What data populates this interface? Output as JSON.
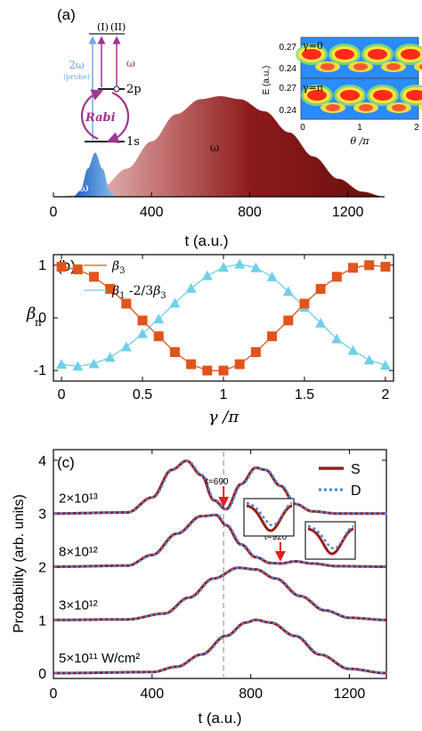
{
  "panel_a": {
    "label": "(a)",
    "pulse_probe_label": "2ω",
    "pulse_pump_label": "ω",
    "levels": {
      "label_1s": "1s",
      "label_2p": "2p",
      "label_I": "(I)",
      "label_II": "(II)"
    },
    "probe_arrow_label": "2ω",
    "probe_arrow_sub": "(probe)",
    "pump_arrow_label": "ω",
    "rabi_label": "Rabi",
    "inset": {
      "ylabel": "E (a.u.)",
      "xlabel": "θ /π",
      "top_label": "γ=0",
      "bottom_label": "γ=π",
      "ticks_y_top": [
        "0.27",
        "0.24"
      ],
      "ticks_y_bottom": [
        "0.27",
        "0.24"
      ],
      "ticks_x": [
        "0",
        "1",
        "2"
      ]
    }
  },
  "panel_b": {
    "label": "(b)"
  },
  "panel_c": {
    "label": "(c)",
    "curve_labels": [
      "2×10¹³",
      "8×10¹²",
      "3×10¹²",
      "5×10¹¹ W/cm²"
    ],
    "marker_labels": [
      "t=690",
      "t=920"
    ]
  },
  "colors": {
    "pump": "#8b1a1a",
    "probe": "#3a8ee6",
    "beta3": "#e0551b",
    "beta1": "#6fd0e8",
    "solid": "#9b1b1b",
    "dotted": "#4a86d6",
    "dashed_vline": "#9aa3ab",
    "rabi": "#a0348f"
  },
  "chart_data": [
    {
      "type": "area",
      "panel": "a",
      "xlabel": "t (a.u.)",
      "xlim": [
        0,
        1350
      ],
      "xticks": [
        0,
        400,
        800,
        1200
      ],
      "series": [
        {
          "name": "2ω",
          "x": [
            80,
            110,
            140,
            170,
            200,
            230,
            260,
            290
          ],
          "values": [
            0.0,
            0.06,
            0.28,
            0.44,
            0.28,
            0.06,
            0.0,
            0.0
          ]
        },
        {
          "name": "ω",
          "x": [
            0,
            100,
            200,
            300,
            400,
            500,
            600,
            680,
            760,
            860,
            960,
            1060,
            1160,
            1260,
            1350
          ],
          "values": [
            0.0,
            0.02,
            0.1,
            0.28,
            0.55,
            0.82,
            0.97,
            1.0,
            0.97,
            0.85,
            0.64,
            0.4,
            0.18,
            0.05,
            0.0
          ]
        }
      ]
    },
    {
      "type": "line",
      "panel": "b",
      "xlabel": "γ /π",
      "ylabel": "β_n",
      "xlim": [
        -0.05,
        2.05
      ],
      "ylim": [
        -1.2,
        1.2
      ],
      "xticks": [
        0,
        0.5,
        1,
        1.5,
        2
      ],
      "yticks": [
        -1,
        0,
        1
      ],
      "series": [
        {
          "name": "β_3",
          "x": [
            0,
            0.1,
            0.2,
            0.3,
            0.4,
            0.5,
            0.6,
            0.7,
            0.8,
            0.9,
            1.0,
            1.1,
            1.2,
            1.3,
            1.4,
            1.5,
            1.6,
            1.7,
            1.8,
            1.9,
            2.0
          ],
          "values": [
            0.97,
            0.92,
            0.78,
            0.55,
            0.27,
            -0.05,
            -0.35,
            -0.65,
            -0.88,
            -1.0,
            -1.0,
            -0.88,
            -0.65,
            -0.35,
            -0.05,
            0.27,
            0.55,
            0.78,
            0.95,
            1.0,
            0.97
          ]
        },
        {
          "name": "β_1 -2/3β_3",
          "x": [
            0,
            0.1,
            0.2,
            0.3,
            0.4,
            0.5,
            0.6,
            0.7,
            0.8,
            0.9,
            1.0,
            1.1,
            1.2,
            1.3,
            1.4,
            1.5,
            1.6,
            1.7,
            1.8,
            1.9,
            2.0
          ],
          "values": [
            -0.88,
            -0.92,
            -0.87,
            -0.75,
            -0.55,
            -0.3,
            -0.02,
            0.28,
            0.56,
            0.8,
            0.96,
            1.02,
            0.95,
            0.78,
            0.5,
            0.2,
            -0.1,
            -0.4,
            -0.62,
            -0.8,
            -0.9
          ]
        }
      ]
    },
    {
      "type": "line",
      "panel": "c",
      "xlabel": "t (a.u.)",
      "ylabel": "Probability (arb. units)",
      "xlim": [
        0,
        1350
      ],
      "ylim": [
        -0.1,
        4.2
      ],
      "xticks": [
        0,
        400,
        800,
        1200
      ],
      "yticks": [
        0,
        1,
        2,
        3,
        4
      ],
      "legend": [
        "S",
        "D"
      ],
      "vline_x": 690,
      "series": [
        {
          "name": "S",
          "label": "2×10¹³",
          "x": [
            0,
            300,
            400,
            480,
            540,
            600,
            650,
            700,
            760,
            820,
            860,
            920,
            980,
            1050,
            1150,
            1350
          ],
          "values": [
            3.0,
            3.02,
            3.3,
            3.82,
            3.99,
            3.72,
            3.25,
            3.08,
            3.55,
            3.86,
            3.82,
            3.52,
            3.18,
            3.04,
            3.0,
            3.0
          ]
        },
        {
          "name": "S",
          "label": "8×10¹²",
          "x": [
            0,
            300,
            400,
            500,
            600,
            660,
            700,
            760,
            820,
            880,
            920,
            980,
            1050,
            1150,
            1350
          ],
          "values": [
            2.0,
            2.02,
            2.22,
            2.62,
            2.95,
            2.97,
            2.78,
            2.42,
            2.18,
            2.07,
            2.06,
            2.1,
            2.06,
            2.01,
            2.0
          ]
        },
        {
          "name": "S",
          "label": "3×10¹²",
          "x": [
            0,
            300,
            450,
            550,
            650,
            750,
            820,
            900,
            1000,
            1100,
            1200,
            1350
          ],
          "values": [
            1.0,
            1.01,
            1.12,
            1.42,
            1.78,
            1.98,
            1.95,
            1.78,
            1.45,
            1.18,
            1.04,
            1.0
          ]
        },
        {
          "name": "S",
          "label": "5×10¹¹ W/cm²",
          "x": [
            0,
            400,
            500,
            600,
            700,
            780,
            820,
            880,
            980,
            1080,
            1200,
            1350
          ],
          "values": [
            0.0,
            0.02,
            0.12,
            0.35,
            0.7,
            0.95,
            1.0,
            0.95,
            0.7,
            0.35,
            0.08,
            0.0
          ]
        }
      ]
    }
  ]
}
